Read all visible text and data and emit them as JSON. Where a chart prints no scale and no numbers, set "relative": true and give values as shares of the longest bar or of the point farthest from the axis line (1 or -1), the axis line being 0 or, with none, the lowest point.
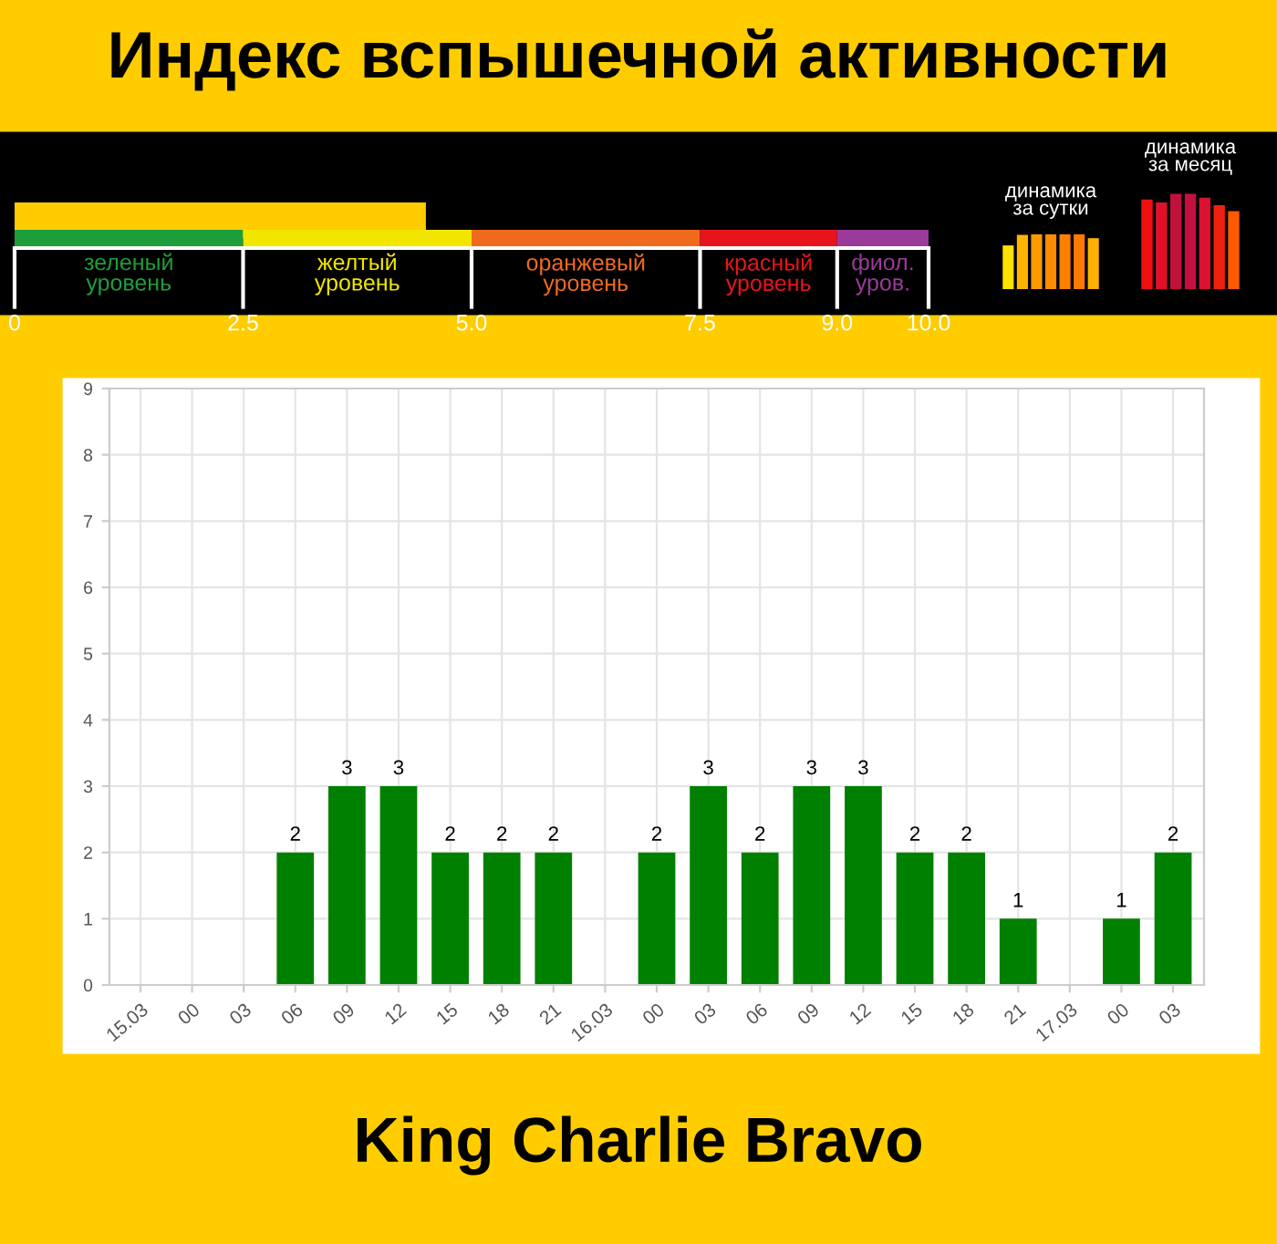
{
  "chart_data": [
    {
      "type": "bar",
      "orientation": "horizontal",
      "title": "Индекс вспышечной активности",
      "categories": [
        null
      ],
      "values": [
        4.5
      ],
      "color": "#ffcc00",
      "xlim": [
        0,
        10
      ],
      "xticks": [
        0,
        {
          "value": 2.5,
          "label": "2.5"
        },
        {
          "value": 5,
          "label": "5.0"
        },
        {
          "value": 7.5,
          "label": "7.5"
        },
        {
          "value": 9,
          "label": "9.0"
        },
        {
          "value": 10,
          "label": "10.0"
        }
      ],
      "bands": [
        {
          "axis": "x",
          "from": 0,
          "to": 2.5,
          "label": "зеленый уровень",
          "color": "#1e9e3a"
        },
        {
          "axis": "x",
          "from": 2.5,
          "to": 5,
          "label": "желтый уровень",
          "color": "#f2e600"
        },
        {
          "axis": "x",
          "from": 5,
          "to": 7.5,
          "label": "оранжевый уровень",
          "color": "#f06a1e"
        },
        {
          "axis": "x",
          "from": 7.5,
          "to": 9,
          "label": "красный уровень",
          "color": "#e8141c"
        },
        {
          "axis": "x",
          "from": 9,
          "to": 10,
          "label": "фиол. уров.",
          "color": "#9a3a9a"
        }
      ]
    },
    {
      "type": "bar",
      "title": "динамика за сутки",
      "relative": true,
      "categories": [
        null,
        null,
        null,
        null,
        null,
        null,
        null
      ],
      "values": [
        0.8,
        0.99,
        1,
        1,
        1,
        1,
        0.93
      ],
      "colors": [
        "#ffe000",
        "#ffb400",
        "#ff9a00",
        "#ff8c00",
        "#ff8000",
        "#ff7a00",
        "#ffb000"
      ],
      "tick_labels": false
    },
    {
      "type": "bar",
      "title": "динамика за месяц",
      "relative": true,
      "categories": [
        null,
        null,
        null,
        null,
        null,
        null,
        null
      ],
      "values": [
        0.94,
        0.91,
        1,
        1,
        0.96,
        0.88,
        0.82
      ],
      "colors": [
        "#f01010",
        "#e0102a",
        "#c0103c",
        "#c41040",
        "#dc1030",
        "#ee2010",
        "#ff5a00"
      ],
      "tick_labels": false
    },
    {
      "type": "bar",
      "annotations": [
        "King Charlie Bravo"
      ],
      "categories": [
        "15.03",
        "00",
        "03",
        "06",
        "09",
        "12",
        "15",
        "18",
        "21",
        "16.03",
        "00",
        "03",
        "06",
        "09",
        "12",
        "15",
        "18",
        "21",
        "17.03",
        "00",
        "03"
      ],
      "values": [
        0,
        0,
        0,
        2,
        3,
        3,
        2,
        2,
        2,
        0,
        2,
        3,
        2,
        3,
        3,
        2,
        2,
        1,
        0,
        1,
        2
      ],
      "value_labels": [
        null,
        null,
        null,
        "2",
        "3",
        "3",
        "2",
        "2",
        "2",
        null,
        "2",
        "3",
        "2",
        "3",
        "3",
        "2",
        "2",
        "1",
        null,
        "1",
        "2"
      ],
      "color": "#008000",
      "ylim": [
        0,
        9
      ],
      "yticks": [
        0,
        1,
        2,
        3,
        4,
        5,
        6,
        7,
        8,
        9
      ],
      "grid": true
    }
  ]
}
